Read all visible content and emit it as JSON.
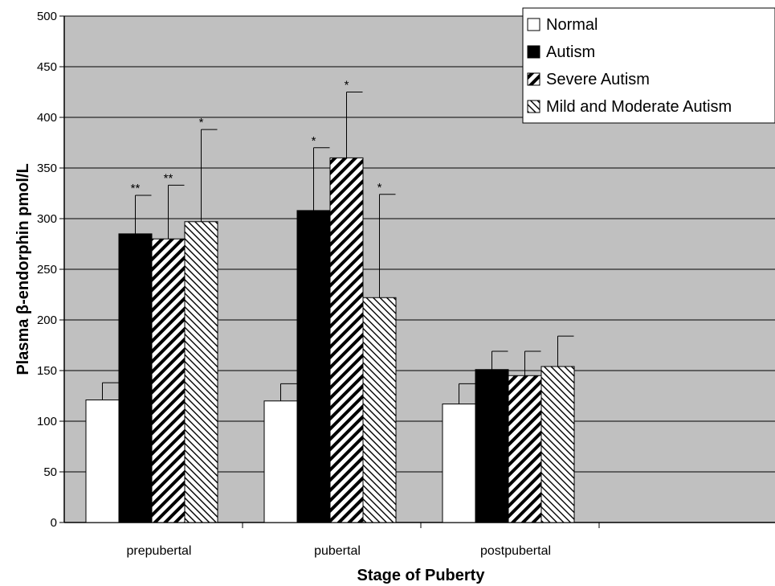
{
  "chart_data": {
    "type": "bar",
    "title": "",
    "xlabel": "Stage of Puberty",
    "ylabel": "Plasma β-endorphin pmol/L",
    "ylim": [
      0,
      500
    ],
    "yticks": [
      0,
      50,
      100,
      150,
      200,
      250,
      300,
      350,
      400,
      450,
      500
    ],
    "categories": [
      "prepubertal",
      "pubertal",
      "postpubertal"
    ],
    "series": [
      {
        "name": "Normal",
        "fill": "white",
        "values": [
          121,
          120,
          117
        ],
        "errors": [
          17,
          17,
          20
        ],
        "annotations": [
          "",
          "",
          ""
        ]
      },
      {
        "name": "Autism",
        "fill": "black",
        "values": [
          285,
          308,
          151
        ],
        "errors": [
          38,
          62,
          18
        ],
        "annotations": [
          "**",
          "*",
          ""
        ]
      },
      {
        "name": "Severe Autism",
        "fill": "diagonal-down",
        "values": [
          280,
          360,
          145
        ],
        "errors": [
          53,
          65,
          24
        ],
        "annotations": [
          "**",
          "*",
          ""
        ]
      },
      {
        "name": "Mild and Moderate Autism",
        "fill": "diagonal-up",
        "values": [
          297,
          222,
          154
        ],
        "errors": [
          91,
          102,
          30
        ],
        "annotations": [
          "*",
          "*",
          ""
        ]
      }
    ],
    "grid": true,
    "legend_position": "top-right",
    "plot_background": "#c0c0c0"
  }
}
